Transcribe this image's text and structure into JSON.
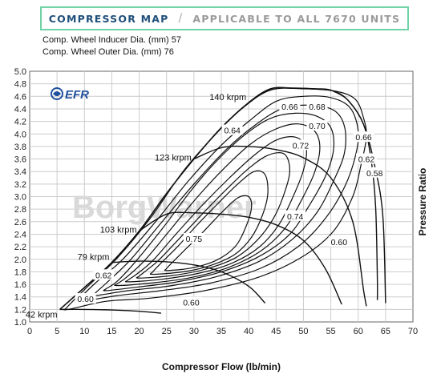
{
  "header": {
    "title": "COMPRESSOR MAP",
    "separator": "/",
    "subtitle": "APPLICABLE TO ALL 7670  UNITS"
  },
  "specs": {
    "inducer": "Comp. Wheel Inducer Dia. (mm) 57",
    "outer": "Comp. Wheel Outer Dia. (mm) 76"
  },
  "logo": {
    "text": "EFR",
    "watermark": "BorgWarner"
  },
  "colors": {
    "title_border": "#6fd3a7",
    "title_text": "#1f4f7a",
    "logo": "#1f4f9e",
    "curves": "#111111",
    "grid": "#cccccc"
  },
  "chart_data": {
    "type": "line",
    "title": "",
    "xlabel": "Compressor Flow (lb/min)",
    "ylabel": "Pressure Ratio",
    "xlim": [
      0,
      70
    ],
    "ylim": [
      1.0,
      5.0
    ],
    "xticks": [
      0,
      5,
      10,
      15,
      20,
      25,
      30,
      35,
      40,
      45,
      50,
      55,
      60,
      65,
      70
    ],
    "yticks": [
      1.0,
      1.2,
      1.4,
      1.6,
      1.8,
      2.0,
      2.2,
      2.4,
      2.6,
      2.8,
      3.0,
      3.2,
      3.4,
      3.6,
      3.8,
      4.0,
      4.2,
      4.4,
      4.6,
      4.8,
      5.0
    ],
    "grid": true,
    "surge_line": [
      [
        5.5,
        1.2
      ],
      [
        10,
        1.55
      ],
      [
        15,
        1.95
      ],
      [
        20,
        2.45
      ],
      [
        25,
        3.05
      ],
      [
        30,
        3.6
      ],
      [
        35,
        4.1
      ],
      [
        40,
        4.5
      ],
      [
        44,
        4.72
      ],
      [
        48,
        4.73
      ],
      [
        52,
        4.72
      ],
      [
        55,
        4.7
      ]
    ],
    "choke_line": [
      [
        55,
        4.7
      ],
      [
        58,
        4.55
      ],
      [
        61,
        4.15
      ],
      [
        63,
        3.5
      ],
      [
        64.5,
        2.7
      ],
      [
        65,
        1.3
      ]
    ],
    "speed_lines": [
      {
        "name": "42 krpm",
        "points": [
          [
            5.5,
            1.2
          ],
          [
            10,
            1.2
          ],
          [
            15,
            1.19
          ],
          [
            20,
            1.17
          ],
          [
            24,
            1.14
          ]
        ]
      },
      {
        "name": "79 krpm",
        "points": [
          [
            15,
            1.95
          ],
          [
            20,
            1.97
          ],
          [
            25,
            1.96
          ],
          [
            30,
            1.91
          ],
          [
            35,
            1.8
          ],
          [
            40,
            1.57
          ],
          [
            43,
            1.3
          ]
        ]
      },
      {
        "name": "103 krpm",
        "points": [
          [
            20,
            2.45
          ],
          [
            25,
            2.72
          ],
          [
            30,
            2.74
          ],
          [
            35,
            2.72
          ],
          [
            40,
            2.67
          ],
          [
            45,
            2.55
          ],
          [
            50,
            2.3
          ],
          [
            54,
            1.85
          ],
          [
            57,
            1.28
          ]
        ]
      },
      {
        "name": "123 krpm",
        "points": [
          [
            30,
            3.6
          ],
          [
            35,
            3.78
          ],
          [
            40,
            3.8
          ],
          [
            45,
            3.75
          ],
          [
            50,
            3.62
          ],
          [
            55,
            3.3
          ],
          [
            59,
            2.6
          ],
          [
            61,
            1.5
          ],
          [
            61.5,
            1.25
          ]
        ]
      },
      {
        "name": "140 krpm",
        "points": [
          [
            40,
            4.5
          ],
          [
            44,
            4.72
          ],
          [
            48,
            4.73
          ],
          [
            52,
            4.72
          ],
          [
            55,
            4.7
          ],
          [
            58,
            4.55
          ],
          [
            61,
            4.15
          ],
          [
            62.5,
            3.5
          ],
          [
            63.2,
            2.8
          ],
          [
            63.5,
            1.7
          ],
          [
            63.5,
            1.35
          ]
        ]
      }
    ],
    "efficiency_labels": [
      {
        "label": "0.60",
        "x": 10.2,
        "y": 1.37
      },
      {
        "label": "0.62",
        "x": 13.5,
        "y": 1.75
      },
      {
        "label": "0.75",
        "x": 30,
        "y": 2.33
      },
      {
        "label": "0.60",
        "x": 29.5,
        "y": 1.31
      },
      {
        "label": "0.64",
        "x": 37,
        "y": 4.06
      },
      {
        "label": "0.66",
        "x": 47.5,
        "y": 4.44
      },
      {
        "label": "0.68",
        "x": 52.5,
        "y": 4.44
      },
      {
        "label": "0.70",
        "x": 52.5,
        "y": 4.13
      },
      {
        "label": "0.72",
        "x": 49.5,
        "y": 3.82
      },
      {
        "label": "0.74",
        "x": 48.5,
        "y": 2.69
      },
      {
        "label": "0.60",
        "x": 56.5,
        "y": 2.28
      },
      {
        "label": "0.66",
        "x": 61,
        "y": 3.95
      },
      {
        "label": "0.62",
        "x": 61.5,
        "y": 3.6
      },
      {
        "label": "0.58",
        "x": 63,
        "y": 3.38
      }
    ],
    "efficiency_islands": [
      {
        "efficiency": 0.6,
        "points": [
          [
            7,
            1.2
          ],
          [
            14,
            1.33
          ],
          [
            22,
            1.38
          ],
          [
            32,
            1.5
          ],
          [
            42,
            1.72
          ],
          [
            50,
            2.05
          ],
          [
            55.5,
            2.45
          ],
          [
            59,
            3.0
          ],
          [
            60.5,
            3.5
          ],
          [
            61.5,
            3.95
          ],
          [
            61,
            4.25
          ],
          [
            59.5,
            4.55
          ],
          [
            56,
            4.68
          ],
          [
            50,
            4.72
          ],
          [
            44,
            4.7
          ],
          [
            39,
            4.42
          ],
          [
            34,
            4.0
          ],
          [
            28,
            3.4
          ],
          [
            22,
            2.65
          ],
          [
            16,
            2.02
          ],
          [
            11,
            1.6
          ],
          [
            7,
            1.25
          ]
        ]
      },
      {
        "efficiency": 0.62,
        "points": [
          [
            9,
            1.32
          ],
          [
            16,
            1.42
          ],
          [
            24,
            1.5
          ],
          [
            33,
            1.62
          ],
          [
            42,
            1.85
          ],
          [
            49,
            2.2
          ],
          [
            54,
            2.65
          ],
          [
            57.5,
            3.15
          ],
          [
            59.5,
            3.65
          ],
          [
            60,
            4.05
          ],
          [
            58.5,
            4.42
          ],
          [
            55,
            4.58
          ],
          [
            50,
            4.6
          ],
          [
            45,
            4.52
          ],
          [
            40,
            4.2
          ],
          [
            35,
            3.82
          ],
          [
            29,
            3.25
          ],
          [
            23,
            2.6
          ],
          [
            17,
            2.0
          ],
          [
            12,
            1.62
          ],
          [
            9,
            1.36
          ]
        ]
      },
      {
        "efficiency": 0.64,
        "points": [
          [
            12,
            1.42
          ],
          [
            18,
            1.5
          ],
          [
            26,
            1.58
          ],
          [
            34,
            1.72
          ],
          [
            42,
            1.97
          ],
          [
            48,
            2.32
          ],
          [
            52.5,
            2.75
          ],
          [
            55.5,
            3.25
          ],
          [
            57.5,
            3.7
          ],
          [
            57.5,
            4.12
          ],
          [
            55.5,
            4.38
          ],
          [
            51,
            4.46
          ],
          [
            46,
            4.4
          ],
          [
            41,
            4.13
          ],
          [
            36,
            3.76
          ],
          [
            30,
            3.2
          ],
          [
            24,
            2.58
          ],
          [
            18.5,
            2.0
          ],
          [
            14,
            1.62
          ],
          [
            12,
            1.46
          ]
        ]
      },
      {
        "efficiency": 0.66,
        "points": [
          [
            14,
            1.5
          ],
          [
            20,
            1.56
          ],
          [
            27,
            1.64
          ],
          [
            35,
            1.8
          ],
          [
            42,
            2.05
          ],
          [
            47.5,
            2.4
          ],
          [
            51,
            2.85
          ],
          [
            54,
            3.32
          ],
          [
            55.5,
            3.75
          ],
          [
            55,
            4.1
          ],
          [
            52.5,
            4.28
          ],
          [
            48.5,
            4.33
          ],
          [
            44,
            4.25
          ],
          [
            39.5,
            4.0
          ],
          [
            34.5,
            3.6
          ],
          [
            29.5,
            3.1
          ],
          [
            24.5,
            2.52
          ],
          [
            19.5,
            1.98
          ],
          [
            16,
            1.65
          ],
          [
            14,
            1.53
          ]
        ]
      },
      {
        "efficiency": 0.68,
        "points": [
          [
            16,
            1.58
          ],
          [
            22,
            1.62
          ],
          [
            29,
            1.7
          ],
          [
            36,
            1.86
          ],
          [
            42,
            2.12
          ],
          [
            46.5,
            2.48
          ],
          [
            49.5,
            2.92
          ],
          [
            52,
            3.38
          ],
          [
            53,
            3.78
          ],
          [
            52,
            4.05
          ],
          [
            49,
            4.16
          ],
          [
            45,
            4.08
          ],
          [
            40.5,
            3.85
          ],
          [
            35.5,
            3.45
          ],
          [
            30.5,
            2.98
          ],
          [
            25.5,
            2.45
          ],
          [
            21,
            1.98
          ],
          [
            17.5,
            1.7
          ],
          [
            16,
            1.61
          ]
        ]
      },
      {
        "efficiency": 0.7,
        "points": [
          [
            18,
            1.64
          ],
          [
            24,
            1.68
          ],
          [
            31,
            1.78
          ],
          [
            37,
            1.94
          ],
          [
            42,
            2.2
          ],
          [
            45.5,
            2.55
          ],
          [
            48,
            2.98
          ],
          [
            50,
            3.42
          ],
          [
            50.5,
            3.78
          ],
          [
            48.5,
            3.95
          ],
          [
            45,
            3.9
          ],
          [
            41,
            3.66
          ],
          [
            36.5,
            3.3
          ],
          [
            31.5,
            2.86
          ],
          [
            26.5,
            2.38
          ],
          [
            22.5,
            1.98
          ],
          [
            19.5,
            1.76
          ],
          [
            18,
            1.67
          ]
        ]
      },
      {
        "efficiency": 0.72,
        "points": [
          [
            20,
            1.7
          ],
          [
            26,
            1.74
          ],
          [
            32,
            1.84
          ],
          [
            37.5,
            2.02
          ],
          [
            41.5,
            2.3
          ],
          [
            44.5,
            2.65
          ],
          [
            46.5,
            3.05
          ],
          [
            47.5,
            3.42
          ],
          [
            46.5,
            3.68
          ],
          [
            43.5,
            3.66
          ],
          [
            40,
            3.45
          ],
          [
            36,
            3.12
          ],
          [
            31.5,
            2.72
          ],
          [
            27,
            2.3
          ],
          [
            23.5,
            1.98
          ],
          [
            21,
            1.8
          ],
          [
            20,
            1.73
          ]
        ]
      },
      {
        "efficiency": 0.74,
        "points": [
          [
            22.5,
            1.76
          ],
          [
            28,
            1.8
          ],
          [
            33,
            1.9
          ],
          [
            37.5,
            2.08
          ],
          [
            40.5,
            2.35
          ],
          [
            42.5,
            2.7
          ],
          [
            43.5,
            3.05
          ],
          [
            43,
            3.35
          ],
          [
            41,
            3.4
          ],
          [
            38,
            3.2
          ],
          [
            34.5,
            2.9
          ],
          [
            30.5,
            2.54
          ],
          [
            27,
            2.2
          ],
          [
            24,
            1.94
          ],
          [
            22.5,
            1.8
          ]
        ]
      },
      {
        "efficiency": 0.75,
        "points": [
          [
            25,
            1.82
          ],
          [
            29.5,
            1.86
          ],
          [
            34,
            1.98
          ],
          [
            37.5,
            2.2
          ],
          [
            39.5,
            2.52
          ],
          [
            40.5,
            2.82
          ],
          [
            40,
            3.0
          ],
          [
            38,
            2.98
          ],
          [
            35,
            2.74
          ],
          [
            31.5,
            2.42
          ],
          [
            28,
            2.12
          ],
          [
            25.5,
            1.9
          ],
          [
            25,
            1.85
          ]
        ]
      }
    ]
  }
}
